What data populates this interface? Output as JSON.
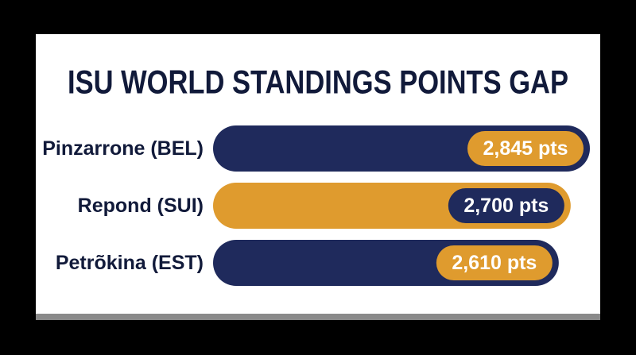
{
  "chart_data": {
    "type": "bar",
    "orientation": "horizontal",
    "title": "ISU WORLD STANDINGS POINTS GAP",
    "categories": [
      "Pinzarrone (BEL)",
      "Repond (SUI)",
      "Petrõkina (EST)"
    ],
    "values": [
      2845,
      2700,
      2610
    ],
    "value_labels": [
      "2,845 pts",
      "2,700 pts",
      "2,610 pts"
    ],
    "colors": [
      "#1f2a5c",
      "#df9b2e",
      "#1f2a5c"
    ]
  }
}
